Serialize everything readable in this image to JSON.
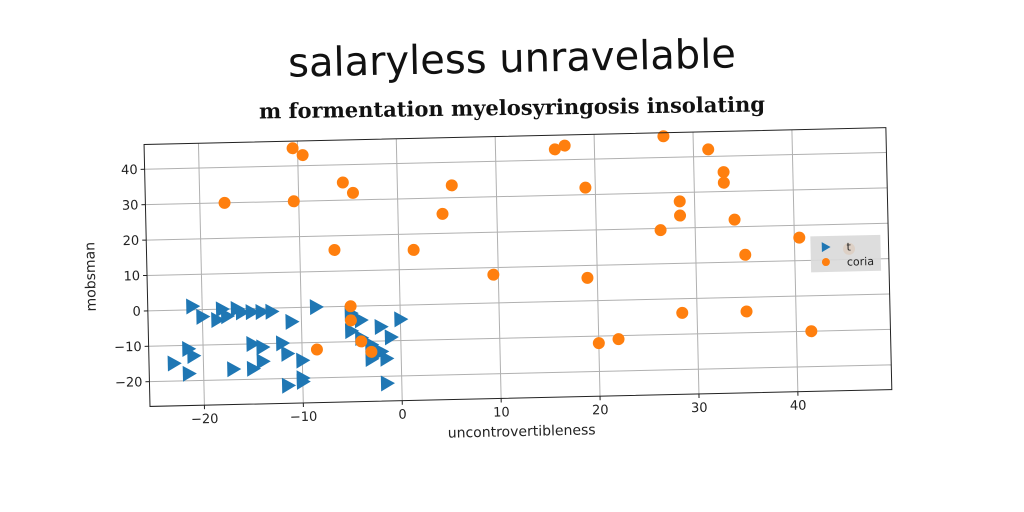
{
  "chart_data": {
    "type": "scatter",
    "title": "salaryless unravelable",
    "subtitle": "m formentation myelosyringosis insolating",
    "xlabel": "uncontrovertibleness",
    "ylabel": "mobsman",
    "xlim": [
      -25.5,
      49.5
    ],
    "ylim": [
      -27,
      47
    ],
    "xticks": [
      -20,
      -10,
      0,
      10,
      20,
      30,
      40
    ],
    "xtick_labels": [
      "−20",
      "−10",
      "0",
      "10",
      "20",
      "30",
      "40"
    ],
    "yticks": [
      -20,
      -10,
      0,
      10,
      20,
      30,
      40
    ],
    "ytick_labels": [
      "−20",
      "−10",
      "0",
      "10",
      "20",
      "30",
      "40"
    ],
    "grid": true,
    "legend_position": "center-right",
    "series": [
      {
        "name": "t",
        "marker": "triangle-right",
        "color": "#1f77b4",
        "points": [
          [
            -21,
            1
          ],
          [
            -20,
            -2
          ],
          [
            -18.5,
            -3
          ],
          [
            -18,
            0
          ],
          [
            -17.5,
            -2
          ],
          [
            -16.5,
            0
          ],
          [
            -16,
            -1
          ],
          [
            -15,
            -1
          ],
          [
            -14,
            -1
          ],
          [
            -13,
            -1
          ],
          [
            -11,
            -4
          ],
          [
            -8.5,
            0
          ],
          [
            -21.5,
            -11
          ],
          [
            -21,
            -13
          ],
          [
            -23,
            -15
          ],
          [
            -21.5,
            -18
          ],
          [
            -17,
            -17
          ],
          [
            -15,
            -17
          ],
          [
            -14,
            -15
          ],
          [
            -15,
            -10
          ],
          [
            -14,
            -11
          ],
          [
            -12,
            -10
          ],
          [
            -11.5,
            -13
          ],
          [
            -10,
            -15
          ],
          [
            -11.5,
            -22
          ],
          [
            -10,
            -20
          ],
          [
            -10,
            -21
          ],
          [
            -5,
            -2
          ],
          [
            -4,
            -4
          ],
          [
            -5,
            -7
          ],
          [
            -4,
            -9
          ],
          [
            -2,
            -6
          ],
          [
            0,
            -4
          ],
          [
            -1,
            -9
          ],
          [
            -3,
            -11
          ],
          [
            -2,
            -13
          ],
          [
            -3,
            -15
          ],
          [
            -1.5,
            -15
          ],
          [
            -1.5,
            -22
          ]
        ]
      },
      {
        "name": "coria",
        "marker": "circle",
        "color": "#ff7f0e",
        "points": [
          [
            -10.5,
            45
          ],
          [
            -9.5,
            43
          ],
          [
            -17.5,
            30
          ],
          [
            -10.5,
            30
          ],
          [
            -5.5,
            35
          ],
          [
            -4.5,
            32
          ],
          [
            -6.5,
            16
          ],
          [
            1.5,
            15.5
          ],
          [
            5.5,
            33.5
          ],
          [
            4.5,
            25.5
          ],
          [
            -5,
            0
          ],
          [
            -5,
            -4
          ],
          [
            -4,
            -10
          ],
          [
            -3,
            -13
          ],
          [
            -8.5,
            -12
          ],
          [
            9.5,
            8
          ],
          [
            16,
            43
          ],
          [
            17,
            44
          ],
          [
            19,
            32
          ],
          [
            19,
            6.5
          ],
          [
            20,
            -12
          ],
          [
            22,
            -11
          ],
          [
            27,
            46
          ],
          [
            26.5,
            19.5
          ],
          [
            28.5,
            23.5
          ],
          [
            28.5,
            27.5
          ],
          [
            28.5,
            -4
          ],
          [
            31.5,
            42
          ],
          [
            33,
            35.5
          ],
          [
            33,
            32.5
          ],
          [
            34,
            22
          ],
          [
            35,
            12
          ],
          [
            35,
            -4
          ],
          [
            40.5,
            16.5
          ],
          [
            41.5,
            -10
          ],
          [
            45.5,
            13
          ]
        ]
      }
    ]
  }
}
